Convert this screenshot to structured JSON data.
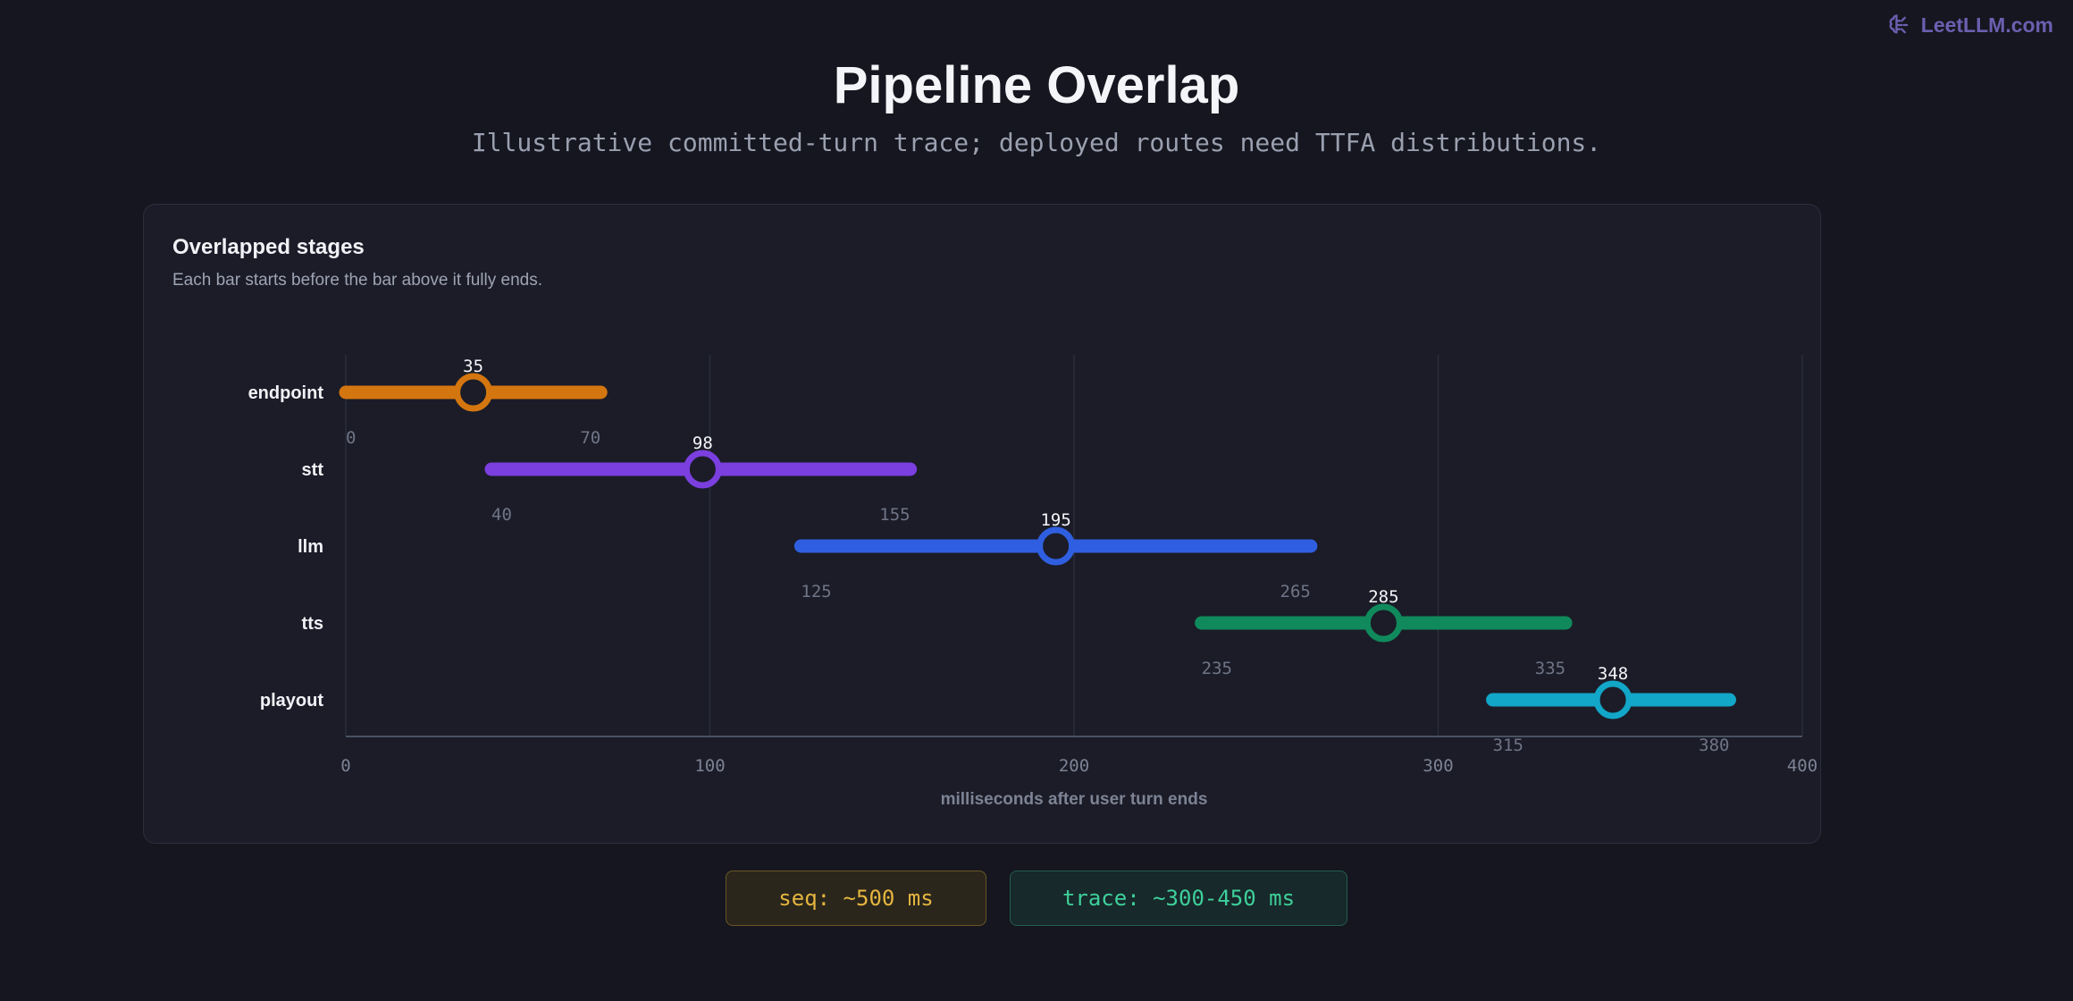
{
  "brand": {
    "name": "LeetLLM.com",
    "icon": "brain-icon"
  },
  "header": {
    "title": "Pipeline Overlap",
    "subtitle": "Illustrative committed-turn trace; deployed routes need TTFA distributions."
  },
  "card": {
    "title": "Overlapped stages",
    "subtitle": "Each bar starts before the bar above it fully ends."
  },
  "chart_data": {
    "type": "bar",
    "orientation": "horizontal-range",
    "xlabel": "milliseconds after user turn ends",
    "xlim": [
      0,
      400
    ],
    "xticks": [
      0,
      100,
      200,
      300,
      400
    ],
    "grid": true,
    "series": [
      {
        "name": "endpoint",
        "start": 0,
        "end": 70,
        "marker": 35,
        "color": "#d4760f"
      },
      {
        "name": "stt",
        "start": 40,
        "end": 155,
        "marker": 98,
        "color": "#7b3fe0"
      },
      {
        "name": "llm",
        "start": 125,
        "end": 265,
        "marker": 195,
        "color": "#2f5fe0"
      },
      {
        "name": "tts",
        "start": 235,
        "end": 335,
        "marker": 285,
        "color": "#108a5c"
      },
      {
        "name": "playout",
        "start": 315,
        "end": 380,
        "marker": 348,
        "color": "#12a6c8"
      }
    ]
  },
  "summary": {
    "seq": "seq: ~500 ms",
    "trace": "trace: ~300-450 ms"
  }
}
